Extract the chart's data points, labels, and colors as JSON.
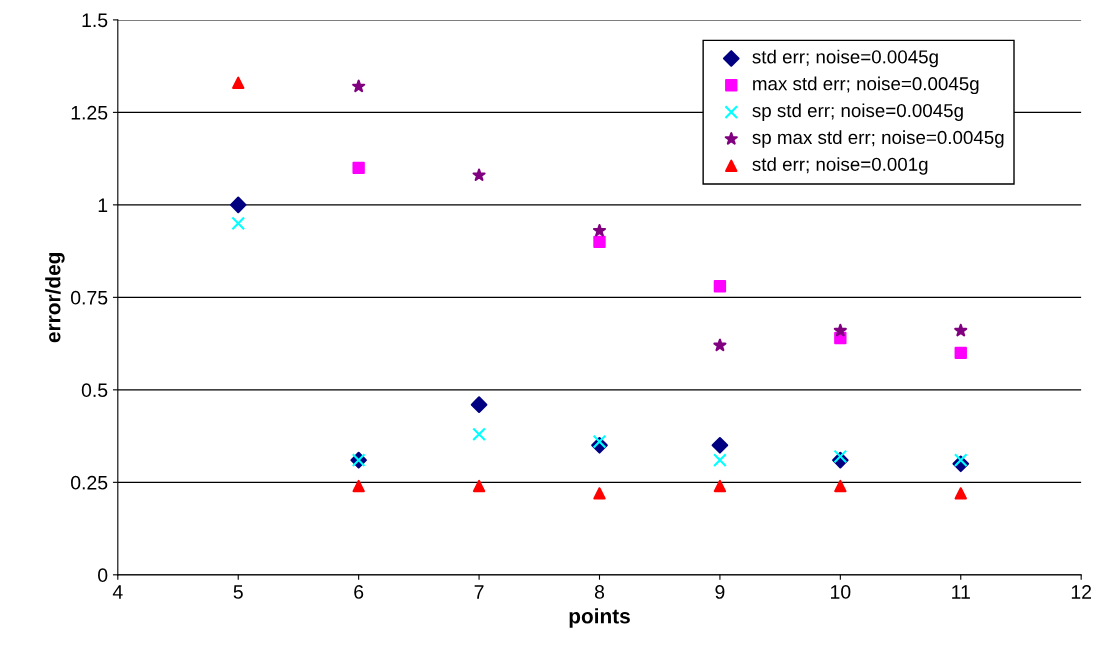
{
  "chart_data": {
    "type": "scatter",
    "xlabel": "points",
    "ylabel": "error/deg",
    "x": [
      5,
      6,
      7,
      8,
      9,
      10,
      11
    ],
    "series": [
      {
        "name": "std err; noise=0.0045g",
        "color": "#000080",
        "marker": "diamond",
        "values": [
          1.0,
          0.31,
          0.46,
          0.35,
          0.35,
          0.31,
          0.3
        ]
      },
      {
        "name": "max std err; noise=0.0045g",
        "color": "#ff00ff",
        "marker": "square",
        "values": [
          null,
          1.1,
          null,
          0.9,
          0.78,
          0.64,
          0.6
        ]
      },
      {
        "name": "sp std err; noise=0.0045g",
        "color": "#00ffff",
        "marker": "cross",
        "values": [
          0.95,
          0.31,
          0.38,
          0.36,
          0.31,
          0.32,
          0.31
        ]
      },
      {
        "name": "sp max std err; noise=0.0045g",
        "color": "#800080",
        "marker": "star",
        "values": [
          null,
          1.32,
          1.08,
          0.93,
          0.62,
          0.66,
          0.66
        ]
      },
      {
        "name": "std err; noise=0.001g",
        "color": "#ff0000",
        "marker": "triangle",
        "values": [
          1.33,
          0.24,
          0.24,
          0.22,
          0.24,
          0.24,
          0.22
        ]
      }
    ],
    "xlim": [
      4,
      12
    ],
    "xticks": [
      4,
      5,
      6,
      7,
      8,
      9,
      10,
      11,
      12
    ],
    "ylim": [
      0,
      1.5
    ],
    "yticks": [
      0,
      0.25,
      0.5,
      0.75,
      1,
      1.25,
      1.5
    ],
    "grid": "y",
    "legend": "top right"
  }
}
